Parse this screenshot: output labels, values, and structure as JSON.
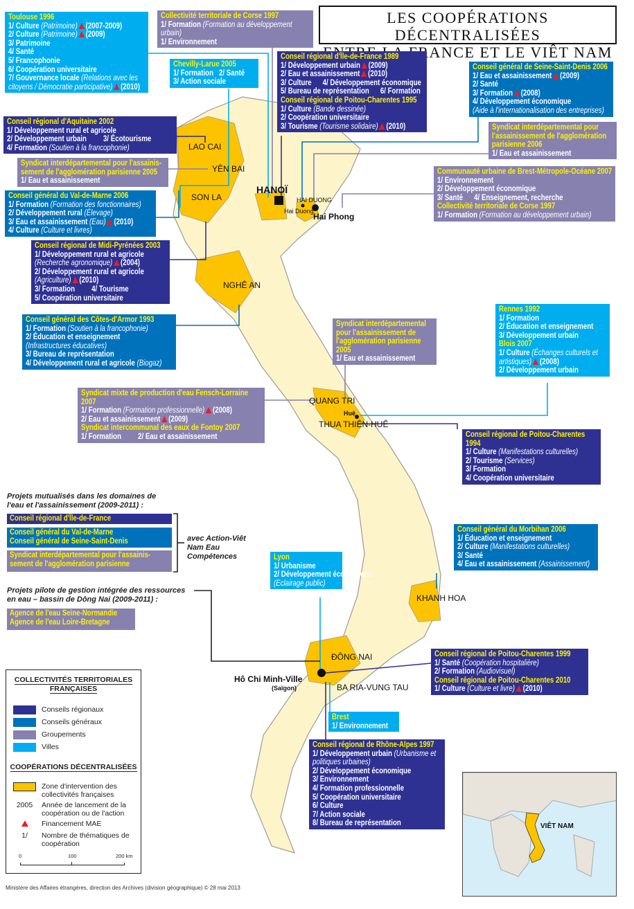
{
  "title": {
    "line1": "LES COOPÉRATIONS DÉCENTRALISÉES",
    "line2": "ENTRE LA FRANCE ET LE VIÊT NAM"
  },
  "colors": {
    "conseils_regionaux": "#2e3192",
    "conseils_generaux": "#0072bc",
    "groupements": "#8781b0",
    "villes": "#00aeef",
    "zone_intervention": "#fdc300",
    "vietnam_land": "#fdf5c9",
    "title_text": "#fff200",
    "financement_mae": "#ed1c24"
  },
  "boxes": [
    {
      "id": "toulouse",
      "category": "villes",
      "sections": [
        {
          "title": "Toulouse 1996",
          "lines": [
            {
              "t": "1/ Culture",
              "n": "(Patrimoine)",
              "mae": true,
              "y": "(2007-2009)"
            },
            {
              "t": "2/ Culture",
              "n": "(Patrimoine)",
              "mae": true,
              "y": "(2009)"
            },
            {
              "t": "3/ Patrimoine"
            },
            {
              "t": "4/ Santé"
            },
            {
              "t": "5/ Francophonie"
            },
            {
              "t": "6/ Coopération universitaire"
            },
            {
              "t": "7/ Gouvernance locale",
              "n": "(Relations avec les citoyens / Démocratie participative)",
              "mae": true,
              "y": "(2010)"
            }
          ]
        }
      ]
    },
    {
      "id": "corse-top",
      "category": "groupements",
      "sections": [
        {
          "title": "Collectivité territoriale de Corse 1997",
          "lines": [
            {
              "t": "1/ Formation",
              "n": "(Formation au développement urbain)"
            },
            {
              "t": "1/ Environnement"
            }
          ]
        }
      ]
    },
    {
      "id": "chevilly",
      "category": "villes",
      "sections": [
        {
          "title": "Chevilly-Larue 2005",
          "lines": [
            {
              "t": "1/ Formation   2/ Santé"
            },
            {
              "t": "3/ Action sociale"
            }
          ]
        }
      ]
    },
    {
      "id": "idf",
      "category": "regionaux",
      "sections": [
        {
          "title": "Conseil régional d'Île-de-France 1989",
          "lines": [
            {
              "t": "1/ Développement urbain",
              "mae": true,
              "y": "(2009)"
            },
            {
              "t": "2/ Eau et assainissement",
              "mae": true,
              "y": "(2010)"
            },
            {
              "t": "3/ Culture      4/ Développement économique"
            },
            {
              "t": "5/ Bureau de représentation      6/ Formation"
            }
          ]
        },
        {
          "title": "Conseil régional de Poitou-Charentes 1995",
          "lines": [
            {
              "t": "1/ Culture",
              "n": "(Bande dessinée)"
            },
            {
              "t": "2/ Coopération universitaire"
            },
            {
              "t": "3/ Tourisme",
              "n": "(Tourisme solidaire)",
              "mae": true,
              "y": "(2010)"
            }
          ]
        }
      ]
    },
    {
      "id": "ssd",
      "category": "generaux",
      "sections": [
        {
          "title": "Conseil général de Seine-Saint-Denis 2006",
          "lines": [
            {
              "t": "1/ Eau et assainissement",
              "mae": true,
              "y": "(2009)"
            },
            {
              "t": "2/ Santé"
            },
            {
              "t": "3/ Formation",
              "mae": true,
              "y": "(2008)"
            },
            {
              "t": "4/ Développement économique"
            },
            {
              "n": "(Aide à l'internationalisation des entreprises)"
            }
          ]
        }
      ]
    },
    {
      "id": "siaap-2006",
      "category": "groupements",
      "sections": [
        {
          "title": "Syndicat interdépartemental pour l'assainissement de l'agglomération parisienne 2006",
          "lines": [
            {
              "t": "1/ Eau et assainissement"
            }
          ]
        }
      ]
    },
    {
      "id": "brest-cu",
      "category": "groupements",
      "sections": [
        {
          "title": "Communauté urbaine de Brest-Métropole-Océane 2007",
          "lines": [
            {
              "t": "1/ Environnement"
            },
            {
              "t": "2/ Développement économique"
            },
            {
              "t": "3/ Santé      4/ Enseignement, recherche"
            }
          ]
        },
        {
          "title": "Collectivité territoriale de Corse 1997",
          "lines": [
            {
              "t": "1/ Formation",
              "n": "(Formation au développement urbain)"
            }
          ]
        }
      ]
    },
    {
      "id": "aquitaine",
      "category": "regionaux",
      "sections": [
        {
          "title": "Conseil régional d'Aquitaine 2002",
          "lines": [
            {
              "t": "1/ Développement rural et agricole"
            },
            {
              "t": "2/ Développement urbain         3/ Écotourisme"
            },
            {
              "t": "4/ Formation",
              "n": "(Soutien à la francophonie)"
            }
          ]
        }
      ]
    },
    {
      "id": "siaap-2005-left",
      "category": "groupements",
      "sections": [
        {
          "title": "Syndicat interdépartemental pour l'assainis-sement de l'agglomération parisienne 2005",
          "lines": [
            {
              "t": "1/ Eau et assainissement"
            }
          ]
        }
      ]
    },
    {
      "id": "val-de-marne",
      "category": "generaux",
      "sections": [
        {
          "title": "Conseil général du Val-de-Marne 2006",
          "lines": [
            {
              "t": "1/ Formation",
              "n": "(Formation des fonctionnaires)"
            },
            {
              "t": "2/ Développement rural",
              "n": "(Élevage)"
            },
            {
              "t": "3/ Eau et assainissement",
              "n": "(Eau)",
              "mae": true,
              "y": "(2010)"
            },
            {
              "t": "4/ Culture",
              "n": "(Culture et livres)"
            }
          ]
        }
      ]
    },
    {
      "id": "midi-pyrenees",
      "category": "regionaux",
      "sections": [
        {
          "title": "Conseil régional de Midi-Pyrénées 2003",
          "lines": [
            {
              "t": "1/ Développement rural et agricole"
            },
            {
              "n": "(Recherche agronomique)",
              "mae": true,
              "y": "(2004)"
            },
            {
              "t": "2/ Développement rural et agricole"
            },
            {
              "n": "(Agriculture)",
              "mae": true,
              "y": "(2010)"
            },
            {
              "t": "3/ Formation         4/ Tourisme"
            },
            {
              "t": "5/ Coopération universitaire"
            }
          ]
        }
      ]
    },
    {
      "id": "cotes-armor",
      "category": "generaux",
      "sections": [
        {
          "title": "Conseil général des Côtes-d'Armor 1993",
          "lines": [
            {
              "t": "1/ Formation",
              "n": "(Soutien à la francophonie)"
            },
            {
              "t": "2/ Éducation et enseignement"
            },
            {
              "n": "(Infrastructures éducatives)"
            },
            {
              "t": "3/ Bureau de représentation"
            },
            {
              "t": "4/ Développement rural et agricole",
              "n": "(Biogaz)"
            }
          ]
        }
      ]
    },
    {
      "id": "siaap-2005-right",
      "category": "groupements",
      "sections": [
        {
          "title": "Syndicat interdépartemental pour l'assainissement de l'agglomération parisienne 2005",
          "lines": [
            {
              "t": "1/ Eau et assainissement"
            }
          ]
        }
      ]
    },
    {
      "id": "rennes-blois",
      "category": "villes",
      "sections": [
        {
          "title": "Rennes 1992",
          "lines": [
            {
              "t": "1/ Formation"
            },
            {
              "t": "2/ Éducation et enseignement"
            },
            {
              "t": "3/ Développement urbain"
            }
          ]
        },
        {
          "title": "Blois 2007",
          "lines": [
            {
              "t": "1/ Culture",
              "n": "(Échanges culturels et artistiques)",
              "mae": true,
              "y": "(2008)"
            },
            {
              "t": "2/ Développement urbain"
            }
          ]
        }
      ]
    },
    {
      "id": "fensch",
      "category": "groupements",
      "sections": [
        {
          "title": "Syndicat mixte de production d'eau Fensch-Lorraine 2007",
          "lines": [
            {
              "t": "1/ Formation",
              "n": "(Formation professionnelle)",
              "mae": true,
              "y": "(2008)"
            },
            {
              "t": "2/ Eau et assainissement",
              "mae": true,
              "y": "(2009)"
            }
          ]
        },
        {
          "title": "Syndicat intercommunal des eaux de Fontoy 2007",
          "lines": [
            {
              "t": "1/ Formation         2/ Eau et assainissement"
            }
          ]
        }
      ]
    },
    {
      "id": "poitou-1994",
      "category": "regionaux",
      "sections": [
        {
          "title": "Conseil régional de Poitou-Charentes 1994",
          "lines": [
            {
              "t": "1/ Culture",
              "n": "(Manifestations culturelles)"
            },
            {
              "t": "2/ Tourisme",
              "n": "(Services)"
            },
            {
              "t": "3/ Formation"
            },
            {
              "t": "4/ Coopération universitaire"
            }
          ]
        }
      ]
    },
    {
      "id": "morbihan",
      "category": "generaux",
      "sections": [
        {
          "title": "Conseil général du Morbihan 2006",
          "lines": [
            {
              "t": "1/ Éducation et enseignement"
            },
            {
              "t": "2/ Culture",
              "n": "(Manifestations culturelles)"
            },
            {
              "t": "3/ Santé"
            },
            {
              "t": "4/ Eau et assainissement",
              "n": "(Assainissement)"
            }
          ]
        }
      ]
    },
    {
      "id": "lyon",
      "category": "villes",
      "sections": [
        {
          "title": "Lyon",
          "lines": [
            {
              "t": "1/ Urbanisme"
            },
            {
              "t": "2/ Développement économique"
            },
            {
              "n": "(Eclairage public)"
            }
          ]
        }
      ]
    },
    {
      "id": "poitou-1999",
      "category": "regionaux",
      "sections": [
        {
          "title": "Conseil régional de Poitou-Charentes 1999",
          "lines": [
            {
              "t": "1/ Santé",
              "n": "(Coopération hospitalière)"
            },
            {
              "t": "2/ Formation",
              "n": "(Audiovisuel)"
            }
          ]
        },
        {
          "title": "Conseil régional de Poitou-Charentes 2010",
          "lines": [
            {
              "t": "1/ Culture",
              "n": "(Culture et livre)",
              "mae": true,
              "y": "(2010)"
            }
          ]
        }
      ]
    },
    {
      "id": "brest-ville",
      "category": "villes",
      "sections": [
        {
          "title": "Brest",
          "lines": [
            {
              "t": "1/ Environnement"
            }
          ]
        }
      ]
    },
    {
      "id": "rhone-alpes",
      "category": "regionaux",
      "sections": [
        {
          "title": "Conseil régional de Rhône-Alpes 1997",
          "lines": [
            {
              "t": "1/ Développement urbain",
              "n": "(Urbanisme et politiques urbaines)"
            },
            {
              "t": "2/ Développement économique"
            },
            {
              "t": "3/ Environnement"
            },
            {
              "t": "4/ Formation professionnelle"
            },
            {
              "t": "5/ Coopération universitaire"
            },
            {
              "t": "6/ Culture"
            },
            {
              "t": "7/ Action sociale"
            },
            {
              "t": "8/ Bureau de représentation"
            }
          ]
        }
      ]
    }
  ],
  "mutualises": {
    "heading": "Projets mutualisés dans les domaines de l'eau et l'assainissement (2009-2011) :",
    "idf": "Conseil régional d'Île-de-France",
    "vdm": "Conseil général du Val-de-Marne",
    "ssd": "Conseil général de Seine-Saint-Denis",
    "siaap": "Syndicat interdépartemental pour l'assainis-sement de l'agglomération parisienne",
    "partner": "avec Action-Viêt Nam Eau Compétences"
  },
  "pilote": {
    "heading": "Projets pilote de gestion intégrée des ressources en eau – bassin de Dông Nai (2009-2011) :",
    "agency1": "Agence de l'eau Seine-Normandie",
    "agency2": "Agence de l'eau Loire-Bretagne"
  },
  "map_labels": {
    "lao_cai": "LAO CAI",
    "yen_bai": "YÊN BAI",
    "son_la": "SON LA",
    "hanoi": "HANOÏ",
    "hai_duong_prov": "HAI DUONG",
    "hai_duong_city": "Hai Duong",
    "hai_phong": "Hai Phong",
    "nghe_an": "NGHÊ AN",
    "quang_tri": "QUANG TRI",
    "hue": "Huê",
    "thua_thien_hue": "THUA THIÊN-HUÊ",
    "khanh_hoa": "KHANH HOA",
    "dong_nai": "ĐÔNG NAI",
    "hcm": "Hô Chi Minh-Ville",
    "saigon": "(Saïgon)",
    "ba_ria": "BA RIA-VUNG TAU"
  },
  "legend": {
    "heading1": "COLLECTIVITÉS TERRITORIALES FRANÇAISES",
    "regionaux": "Conseils régionaux",
    "generaux": "Conseils généraux",
    "groupements": "Groupements",
    "villes": "Villes",
    "heading2": "COOPÉRATIONS DÉCENTRALISÉES",
    "zone": "Zone d'intervention des collectivités françaises",
    "year_sample": "2005",
    "year_desc": "Année de lancement de la coopération ou de l'action",
    "mae": "Financement MAE",
    "num_sample": "1/",
    "num_desc": "Nombre de thématiques de coopération",
    "scale": [
      "0",
      "100",
      "200 km"
    ]
  },
  "inset": {
    "label": "VIÊT NAM"
  },
  "credit": "Ministère des Affaires étrangères, direction des Archives (division géographique)   © 28 mai 2013"
}
